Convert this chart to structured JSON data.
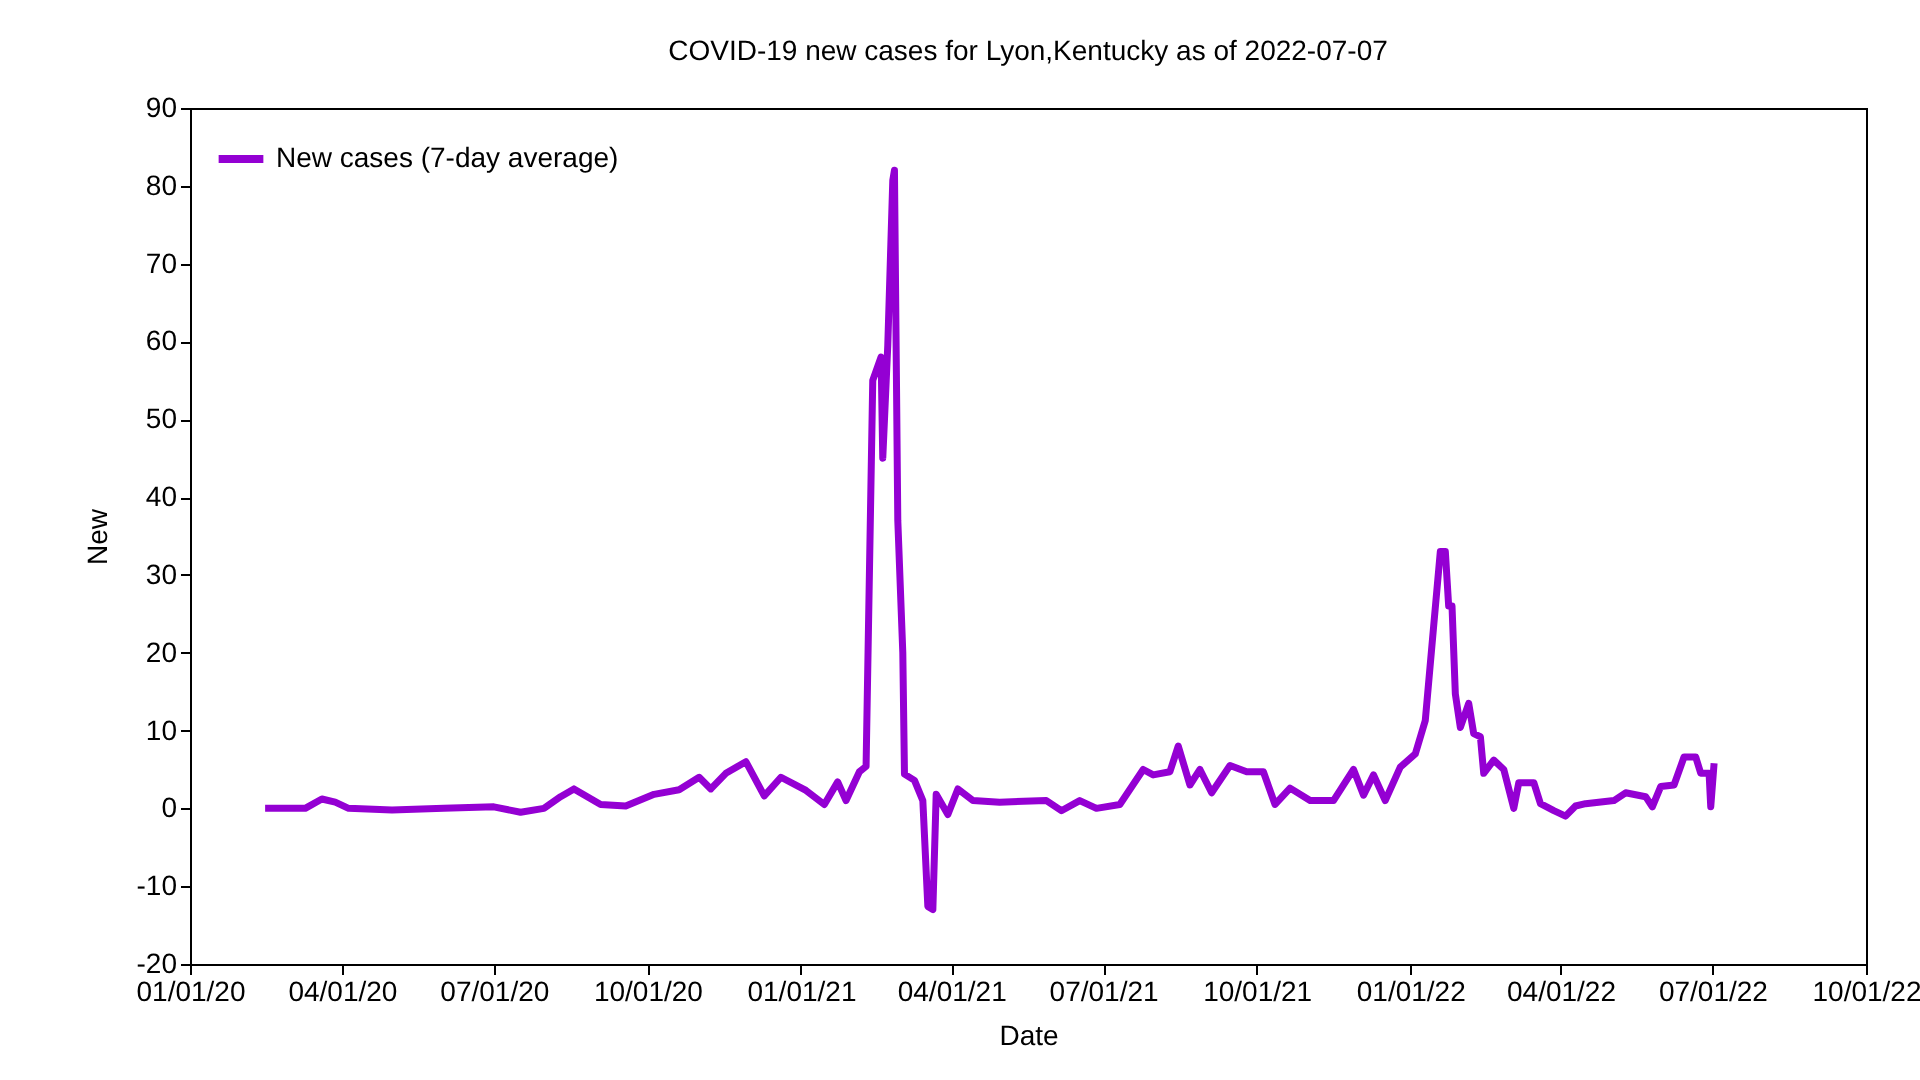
{
  "chart_data": {
    "type": "line",
    "title": "COVID-19 new cases for Lyon,Kentucky as of 2022-07-07",
    "xlabel": "Date",
    "ylabel": "New",
    "legend": "top left",
    "grid": false,
    "x": [
      "2020-02-15",
      "2020-03-10",
      "2020-03-20",
      "2020-03-28",
      "2020-04-05",
      "2020-05-01",
      "2020-06-01",
      "2020-07-01",
      "2020-07-17",
      "2020-07-31",
      "2020-08-10",
      "2020-08-18",
      "2020-09-03",
      "2020-09-18",
      "2020-10-05",
      "2020-10-20",
      "2020-11-01",
      "2020-11-08",
      "2020-11-17",
      "2020-11-29",
      "2020-12-10",
      "2020-12-20",
      "2021-01-04",
      "2021-01-15",
      "2021-01-23",
      "2021-01-28",
      "2021-02-05",
      "2021-02-09",
      "2021-02-13",
      "2021-02-18",
      "2021-02-19",
      "2021-02-22",
      "2021-02-25",
      "2021-02-26",
      "2021-02-28",
      "2021-03-03",
      "2021-03-04",
      "2021-03-10",
      "2021-03-15",
      "2021-03-18",
      "2021-03-21",
      "2021-03-23",
      "2021-03-30",
      "2021-04-05",
      "2021-04-14",
      "2021-04-30",
      "2021-05-28",
      "2021-06-06",
      "2021-06-17",
      "2021-06-27",
      "2021-07-11",
      "2021-07-25",
      "2021-07-31",
      "2021-08-10",
      "2021-08-15",
      "2021-08-22",
      "2021-08-28",
      "2021-09-04",
      "2021-09-15",
      "2021-09-25",
      "2021-10-05",
      "2021-10-12",
      "2021-10-21",
      "2021-11-02",
      "2021-11-16",
      "2021-11-28",
      "2021-12-04",
      "2021-12-10",
      "2021-12-17",
      "2021-12-26",
      "2022-01-04",
      "2022-01-10",
      "2022-01-15",
      "2022-01-19",
      "2022-01-22",
      "2022-01-24",
      "2022-01-26",
      "2022-01-28",
      "2022-01-31",
      "2022-02-05",
      "2022-02-08",
      "2022-02-12",
      "2022-02-14",
      "2022-02-20",
      "2022-02-26",
      "2022-03-04",
      "2022-03-07",
      "2022-03-16",
      "2022-03-20",
      "2022-03-28",
      "2022-04-04",
      "2022-04-10",
      "2022-04-16",
      "2022-05-03",
      "2022-05-10",
      "2022-05-22",
      "2022-05-26",
      "2022-05-31",
      "2022-06-08",
      "2022-06-14",
      "2022-06-21",
      "2022-06-24",
      "2022-06-29",
      "2022-06-30",
      "2022-07-02"
    ],
    "series": [
      {
        "name": "New cases (7-day average)",
        "color": "#9400d3",
        "values": [
          0,
          0,
          1.2,
          0.8,
          0,
          -0.2,
          0,
          0.2,
          -0.5,
          0,
          1.5,
          2.5,
          0.5,
          0.3,
          1.8,
          2.4,
          4,
          2.5,
          4.5,
          6,
          1.6,
          4,
          2.3,
          0.5,
          3.4,
          1,
          4.7,
          5.4,
          55,
          58,
          45,
          59.5,
          80.7,
          82,
          37,
          20,
          4.4,
          3.6,
          1,
          -12.6,
          -13,
          1.8,
          -0.8,
          2.5,
          1,
          0.8,
          1,
          -0.3,
          1,
          0,
          0.5,
          5,
          4.3,
          4.7,
          8,
          3,
          5,
          2,
          5.5,
          4.7,
          4.7,
          0.5,
          2.6,
          1,
          1,
          5,
          1.7,
          4.3,
          1,
          5.3,
          7,
          11.3,
          23.4,
          33,
          33,
          26,
          26,
          14.7,
          10.4,
          13.5,
          9.6,
          9.2,
          4.5,
          6.2,
          5,
          0,
          3.3,
          3.3,
          0.6,
          -0.3,
          -1,
          0.3,
          0.6,
          1,
          2,
          1.5,
          0.2,
          2.8,
          3,
          6.6,
          6.6,
          4.5,
          4.5,
          0.2,
          5.8
        ]
      }
    ],
    "xlim": [
      "2020-01-01",
      "2022-10-01"
    ],
    "xticks": [
      {
        "value": "2020-01-01",
        "label": "01/01/20"
      },
      {
        "value": "2020-04-01",
        "label": "04/01/20"
      },
      {
        "value": "2020-07-01",
        "label": "07/01/20"
      },
      {
        "value": "2020-10-01",
        "label": "10/01/20"
      },
      {
        "value": "2021-01-01",
        "label": "01/01/21"
      },
      {
        "value": "2021-04-01",
        "label": "04/01/21"
      },
      {
        "value": "2021-07-01",
        "label": "07/01/21"
      },
      {
        "value": "2021-10-01",
        "label": "10/01/21"
      },
      {
        "value": "2022-01-01",
        "label": "01/01/22"
      },
      {
        "value": "2022-04-01",
        "label": "04/01/22"
      },
      {
        "value": "2022-07-01",
        "label": "07/01/22"
      },
      {
        "value": "2022-10-01",
        "label": "10/01/22"
      }
    ],
    "ylim": [
      -20,
      90
    ],
    "yticks": [
      -20,
      -10,
      0,
      10,
      20,
      30,
      40,
      50,
      60,
      70,
      80,
      90
    ]
  }
}
